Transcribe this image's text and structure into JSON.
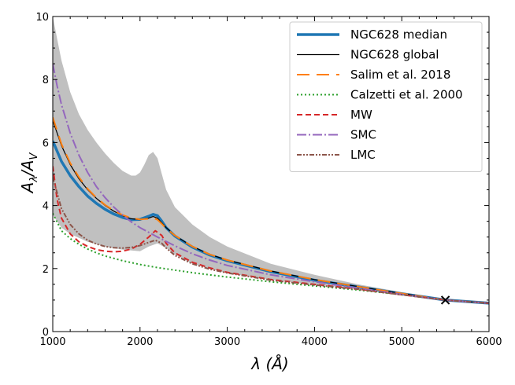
{
  "chart_data": {
    "type": "line",
    "xlabel": "λ (Å)",
    "ylabel_main": "A",
    "ylabel_sub1": "λ",
    "ylabel_slash": "/A",
    "ylabel_sub2": "V",
    "xlim": [
      1000,
      6000
    ],
    "ylim": [
      0,
      10
    ],
    "x_ticks": [
      1000,
      2000,
      3000,
      4000,
      5000,
      6000
    ],
    "y_ticks": [
      0,
      2,
      4,
      6,
      8,
      10
    ],
    "x_tick_labels": [
      "1000",
      "2000",
      "3000",
      "4000",
      "5000",
      "6000"
    ],
    "y_tick_labels": [
      "0",
      "2",
      "4",
      "6",
      "8",
      "10"
    ],
    "legend_location": "upper right",
    "band": {
      "color": "#c0c0c0",
      "upper": [
        [
          1000,
          10.0
        ],
        [
          1050,
          9.3
        ],
        [
          1100,
          8.6
        ],
        [
          1200,
          7.6
        ],
        [
          1300,
          6.9
        ],
        [
          1400,
          6.4
        ],
        [
          1500,
          6.0
        ],
        [
          1600,
          5.65
        ],
        [
          1700,
          5.35
        ],
        [
          1800,
          5.1
        ],
        [
          1900,
          4.95
        ],
        [
          1950,
          4.95
        ],
        [
          2000,
          5.05
        ],
        [
          2050,
          5.3
        ],
        [
          2100,
          5.6
        ],
        [
          2150,
          5.7
        ],
        [
          2200,
          5.5
        ],
        [
          2250,
          5.0
        ],
        [
          2300,
          4.5
        ],
        [
          2400,
          3.95
        ],
        [
          2600,
          3.4
        ],
        [
          2800,
          3.0
        ],
        [
          3000,
          2.7
        ],
        [
          3500,
          2.15
        ],
        [
          4000,
          1.8
        ],
        [
          4500,
          1.5
        ],
        [
          5000,
          1.25
        ],
        [
          5500,
          1.05
        ],
        [
          6000,
          0.95
        ]
      ],
      "lower": [
        [
          1000,
          3.7
        ],
        [
          1100,
          3.3
        ],
        [
          1200,
          3.1
        ],
        [
          1400,
          2.85
        ],
        [
          1600,
          2.7
        ],
        [
          1800,
          2.6
        ],
        [
          2000,
          2.55
        ],
        [
          2100,
          2.7
        ],
        [
          2200,
          2.8
        ],
        [
          2300,
          2.65
        ],
        [
          2400,
          2.45
        ],
        [
          2600,
          2.15
        ],
        [
          2800,
          2.0
        ],
        [
          3000,
          1.85
        ],
        [
          3500,
          1.65
        ],
        [
          4000,
          1.5
        ],
        [
          4500,
          1.35
        ],
        [
          5000,
          1.18
        ],
        [
          5500,
          1.0
        ],
        [
          6000,
          0.87
        ]
      ]
    },
    "series": [
      {
        "name": "NGC628 median",
        "color": "#1f77b4",
        "dash": "",
        "width": 3.5,
        "points": [
          [
            1000,
            6.05
          ],
          [
            1100,
            5.4
          ],
          [
            1200,
            4.95
          ],
          [
            1300,
            4.6
          ],
          [
            1400,
            4.3
          ],
          [
            1500,
            4.07
          ],
          [
            1600,
            3.88
          ],
          [
            1700,
            3.73
          ],
          [
            1800,
            3.62
          ],
          [
            1900,
            3.55
          ],
          [
            2000,
            3.56
          ],
          [
            2100,
            3.66
          ],
          [
            2150,
            3.72
          ],
          [
            2200,
            3.68
          ],
          [
            2250,
            3.5
          ],
          [
            2300,
            3.3
          ],
          [
            2400,
            3.03
          ],
          [
            2600,
            2.68
          ],
          [
            2800,
            2.43
          ],
          [
            3000,
            2.25
          ],
          [
            3500,
            1.9
          ],
          [
            4000,
            1.63
          ],
          [
            4500,
            1.42
          ],
          [
            5000,
            1.2
          ],
          [
            5500,
            1.0
          ],
          [
            6000,
            0.9
          ]
        ]
      },
      {
        "name": "NGC628 global",
        "color": "#000000",
        "dash": "",
        "width": 1.2,
        "points": [
          [
            1000,
            6.7
          ],
          [
            1100,
            5.9
          ],
          [
            1200,
            5.3
          ],
          [
            1300,
            4.85
          ],
          [
            1400,
            4.5
          ],
          [
            1500,
            4.23
          ],
          [
            1600,
            4.0
          ],
          [
            1700,
            3.82
          ],
          [
            1800,
            3.68
          ],
          [
            1900,
            3.58
          ],
          [
            2000,
            3.55
          ],
          [
            2100,
            3.6
          ],
          [
            2150,
            3.65
          ],
          [
            2200,
            3.6
          ],
          [
            2250,
            3.45
          ],
          [
            2300,
            3.3
          ],
          [
            2400,
            3.05
          ],
          [
            2600,
            2.7
          ],
          [
            2800,
            2.45
          ],
          [
            3000,
            2.27
          ],
          [
            3500,
            1.92
          ],
          [
            4000,
            1.65
          ],
          [
            4500,
            1.43
          ],
          [
            5000,
            1.21
          ],
          [
            5500,
            1.0
          ],
          [
            6000,
            0.9
          ]
        ]
      },
      {
        "name": "Salim et al. 2018",
        "color": "#ff7f0e",
        "dash": "16,9",
        "width": 2,
        "points": [
          [
            1000,
            6.8
          ],
          [
            1100,
            5.95
          ],
          [
            1200,
            5.35
          ],
          [
            1300,
            4.9
          ],
          [
            1400,
            4.53
          ],
          [
            1500,
            4.25
          ],
          [
            1600,
            4.02
          ],
          [
            1700,
            3.84
          ],
          [
            1800,
            3.7
          ],
          [
            1900,
            3.6
          ],
          [
            2000,
            3.56
          ],
          [
            2100,
            3.58
          ],
          [
            2150,
            3.6
          ],
          [
            2200,
            3.55
          ],
          [
            2250,
            3.42
          ],
          [
            2300,
            3.28
          ],
          [
            2400,
            3.05
          ],
          [
            2600,
            2.7
          ],
          [
            2800,
            2.45
          ],
          [
            3000,
            2.27
          ],
          [
            3500,
            1.92
          ],
          [
            4000,
            1.65
          ],
          [
            4500,
            1.43
          ],
          [
            5000,
            1.21
          ],
          [
            5500,
            1.0
          ],
          [
            6000,
            0.9
          ]
        ]
      },
      {
        "name": "Calzetti et al. 2000",
        "color": "#2ca02c",
        "dash": "2,3",
        "width": 2,
        "points": [
          [
            1000,
            3.75
          ],
          [
            1100,
            3.2
          ],
          [
            1200,
            2.95
          ],
          [
            1300,
            2.77
          ],
          [
            1400,
            2.62
          ],
          [
            1500,
            2.5
          ],
          [
            1600,
            2.4
          ],
          [
            1800,
            2.25
          ],
          [
            2000,
            2.13
          ],
          [
            2200,
            2.03
          ],
          [
            2400,
            1.95
          ],
          [
            2600,
            1.87
          ],
          [
            2800,
            1.8
          ],
          [
            3000,
            1.73
          ],
          [
            3500,
            1.58
          ],
          [
            4000,
            1.45
          ],
          [
            4500,
            1.32
          ],
          [
            5000,
            1.17
          ],
          [
            5500,
            1.0
          ],
          [
            6000,
            0.9
          ]
        ]
      },
      {
        "name": "MW",
        "color": "#d62728",
        "dash": "7,4",
        "width": 2,
        "points": [
          [
            1000,
            5.25
          ],
          [
            1050,
            4.2
          ],
          [
            1100,
            3.6
          ],
          [
            1200,
            3.1
          ],
          [
            1300,
            2.85
          ],
          [
            1400,
            2.7
          ],
          [
            1500,
            2.6
          ],
          [
            1600,
            2.55
          ],
          [
            1700,
            2.53
          ],
          [
            1800,
            2.55
          ],
          [
            1900,
            2.62
          ],
          [
            2000,
            2.77
          ],
          [
            2100,
            3.0
          ],
          [
            2175,
            3.2
          ],
          [
            2250,
            3.05
          ],
          [
            2300,
            2.8
          ],
          [
            2400,
            2.5
          ],
          [
            2600,
            2.2
          ],
          [
            2800,
            2.02
          ],
          [
            3000,
            1.88
          ],
          [
            3500,
            1.65
          ],
          [
            4000,
            1.5
          ],
          [
            4500,
            1.35
          ],
          [
            5000,
            1.17
          ],
          [
            5500,
            1.0
          ],
          [
            6000,
            0.9
          ]
        ]
      },
      {
        "name": "SMC",
        "color": "#9467bd",
        "dash": "12,3,2,3",
        "width": 2,
        "points": [
          [
            1000,
            8.5
          ],
          [
            1050,
            7.8
          ],
          [
            1100,
            7.2
          ],
          [
            1200,
            6.3
          ],
          [
            1300,
            5.6
          ],
          [
            1400,
            5.05
          ],
          [
            1500,
            4.6
          ],
          [
            1600,
            4.25
          ],
          [
            1700,
            3.95
          ],
          [
            1800,
            3.7
          ],
          [
            1900,
            3.48
          ],
          [
            2000,
            3.3
          ],
          [
            2200,
            3.0
          ],
          [
            2400,
            2.72
          ],
          [
            2600,
            2.47
          ],
          [
            2800,
            2.27
          ],
          [
            3000,
            2.1
          ],
          [
            3500,
            1.8
          ],
          [
            4000,
            1.58
          ],
          [
            4500,
            1.38
          ],
          [
            5000,
            1.18
          ],
          [
            5500,
            1.0
          ],
          [
            6000,
            0.9
          ]
        ]
      },
      {
        "name": "LMC",
        "color": "#8c564b",
        "dash": "6,2,2,2,2,2",
        "width": 2,
        "points": [
          [
            1000,
            4.9
          ],
          [
            1100,
            3.9
          ],
          [
            1200,
            3.4
          ],
          [
            1300,
            3.1
          ],
          [
            1400,
            2.9
          ],
          [
            1500,
            2.78
          ],
          [
            1600,
            2.7
          ],
          [
            1700,
            2.66
          ],
          [
            1800,
            2.65
          ],
          [
            1900,
            2.67
          ],
          [
            2000,
            2.73
          ],
          [
            2100,
            2.83
          ],
          [
            2175,
            2.9
          ],
          [
            2250,
            2.8
          ],
          [
            2300,
            2.65
          ],
          [
            2400,
            2.42
          ],
          [
            2600,
            2.15
          ],
          [
            2800,
            1.98
          ],
          [
            3000,
            1.86
          ],
          [
            3500,
            1.63
          ],
          [
            4000,
            1.48
          ],
          [
            4500,
            1.34
          ],
          [
            5000,
            1.17
          ],
          [
            5500,
            1.0
          ],
          [
            6000,
            0.9
          ]
        ]
      }
    ],
    "marker": {
      "x": 5500,
      "y": 1.0,
      "symbol": "x",
      "color": "#000000"
    }
  }
}
